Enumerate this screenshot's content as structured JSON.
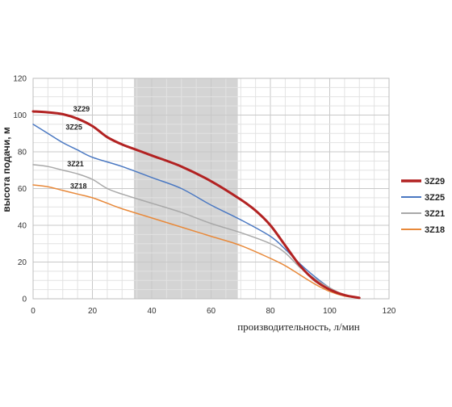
{
  "chart_data": {
    "type": "line",
    "xlabel": "производительность, л/мин",
    "ylabel": "высота подачи, м",
    "xlim": [
      0,
      120
    ],
    "ylim": [
      0,
      120
    ],
    "xticks": [
      0,
      20,
      40,
      60,
      80,
      100,
      120
    ],
    "yticks": [
      0,
      20,
      40,
      60,
      80,
      100,
      120
    ],
    "grid": true,
    "highlight_band": {
      "x_from": 34,
      "x_to": 69,
      "color": "#d4d4d4"
    },
    "legend_position": "right",
    "series": [
      {
        "name": "3Z29",
        "color": "#b22222",
        "width": 3,
        "label_at": {
          "x": 13.5,
          "y": 102
        },
        "points": [
          [
            0,
            102
          ],
          [
            5,
            101.5
          ],
          [
            10,
            100.5
          ],
          [
            15,
            98
          ],
          [
            20,
            94
          ],
          [
            25,
            88
          ],
          [
            30,
            84
          ],
          [
            35,
            81
          ],
          [
            40,
            78
          ],
          [
            50,
            72
          ],
          [
            60,
            64
          ],
          [
            70,
            54
          ],
          [
            75,
            48
          ],
          [
            80,
            40
          ],
          [
            85,
            29
          ],
          [
            90,
            18
          ],
          [
            95,
            10
          ],
          [
            100,
            5
          ],
          [
            105,
            2
          ],
          [
            110,
            0.5
          ]
        ]
      },
      {
        "name": "3Z25",
        "color": "#4a78c2",
        "width": 1.5,
        "label_at": {
          "x": 11,
          "y": 92
        },
        "points": [
          [
            0,
            95
          ],
          [
            5,
            90
          ],
          [
            10,
            85
          ],
          [
            15,
            81
          ],
          [
            20,
            77
          ],
          [
            30,
            72
          ],
          [
            40,
            66
          ],
          [
            50,
            60
          ],
          [
            60,
            51
          ],
          [
            70,
            43
          ],
          [
            80,
            34
          ],
          [
            85,
            27
          ],
          [
            90,
            19
          ],
          [
            95,
            12
          ],
          [
            100,
            6
          ],
          [
            105,
            2
          ],
          [
            110,
            0.5
          ]
        ]
      },
      {
        "name": "3Z21",
        "color": "#a8a8a8",
        "width": 1.5,
        "label_at": {
          "x": 11.5,
          "y": 72
        },
        "points": [
          [
            0,
            73
          ],
          [
            5,
            72
          ],
          [
            10,
            70
          ],
          [
            15,
            68
          ],
          [
            20,
            65
          ],
          [
            25,
            60
          ],
          [
            30,
            57
          ],
          [
            40,
            52
          ],
          [
            50,
            47
          ],
          [
            60,
            41
          ],
          [
            70,
            36
          ],
          [
            80,
            30
          ],
          [
            85,
            25
          ],
          [
            90,
            17
          ],
          [
            95,
            11
          ],
          [
            100,
            6
          ],
          [
            105,
            2
          ],
          [
            110,
            0.5
          ]
        ]
      },
      {
        "name": "3Z18",
        "color": "#e8893a",
        "width": 1.5,
        "label_at": {
          "x": 12.5,
          "y": 60
        },
        "points": [
          [
            0,
            62
          ],
          [
            5,
            61
          ],
          [
            10,
            59
          ],
          [
            15,
            57
          ],
          [
            20,
            55
          ],
          [
            25,
            52
          ],
          [
            30,
            49
          ],
          [
            40,
            44
          ],
          [
            50,
            39
          ],
          [
            60,
            34
          ],
          [
            70,
            29
          ],
          [
            80,
            22
          ],
          [
            85,
            18
          ],
          [
            90,
            13
          ],
          [
            95,
            8
          ],
          [
            100,
            4
          ],
          [
            105,
            1.5
          ],
          [
            110,
            0.5
          ]
        ]
      }
    ]
  }
}
